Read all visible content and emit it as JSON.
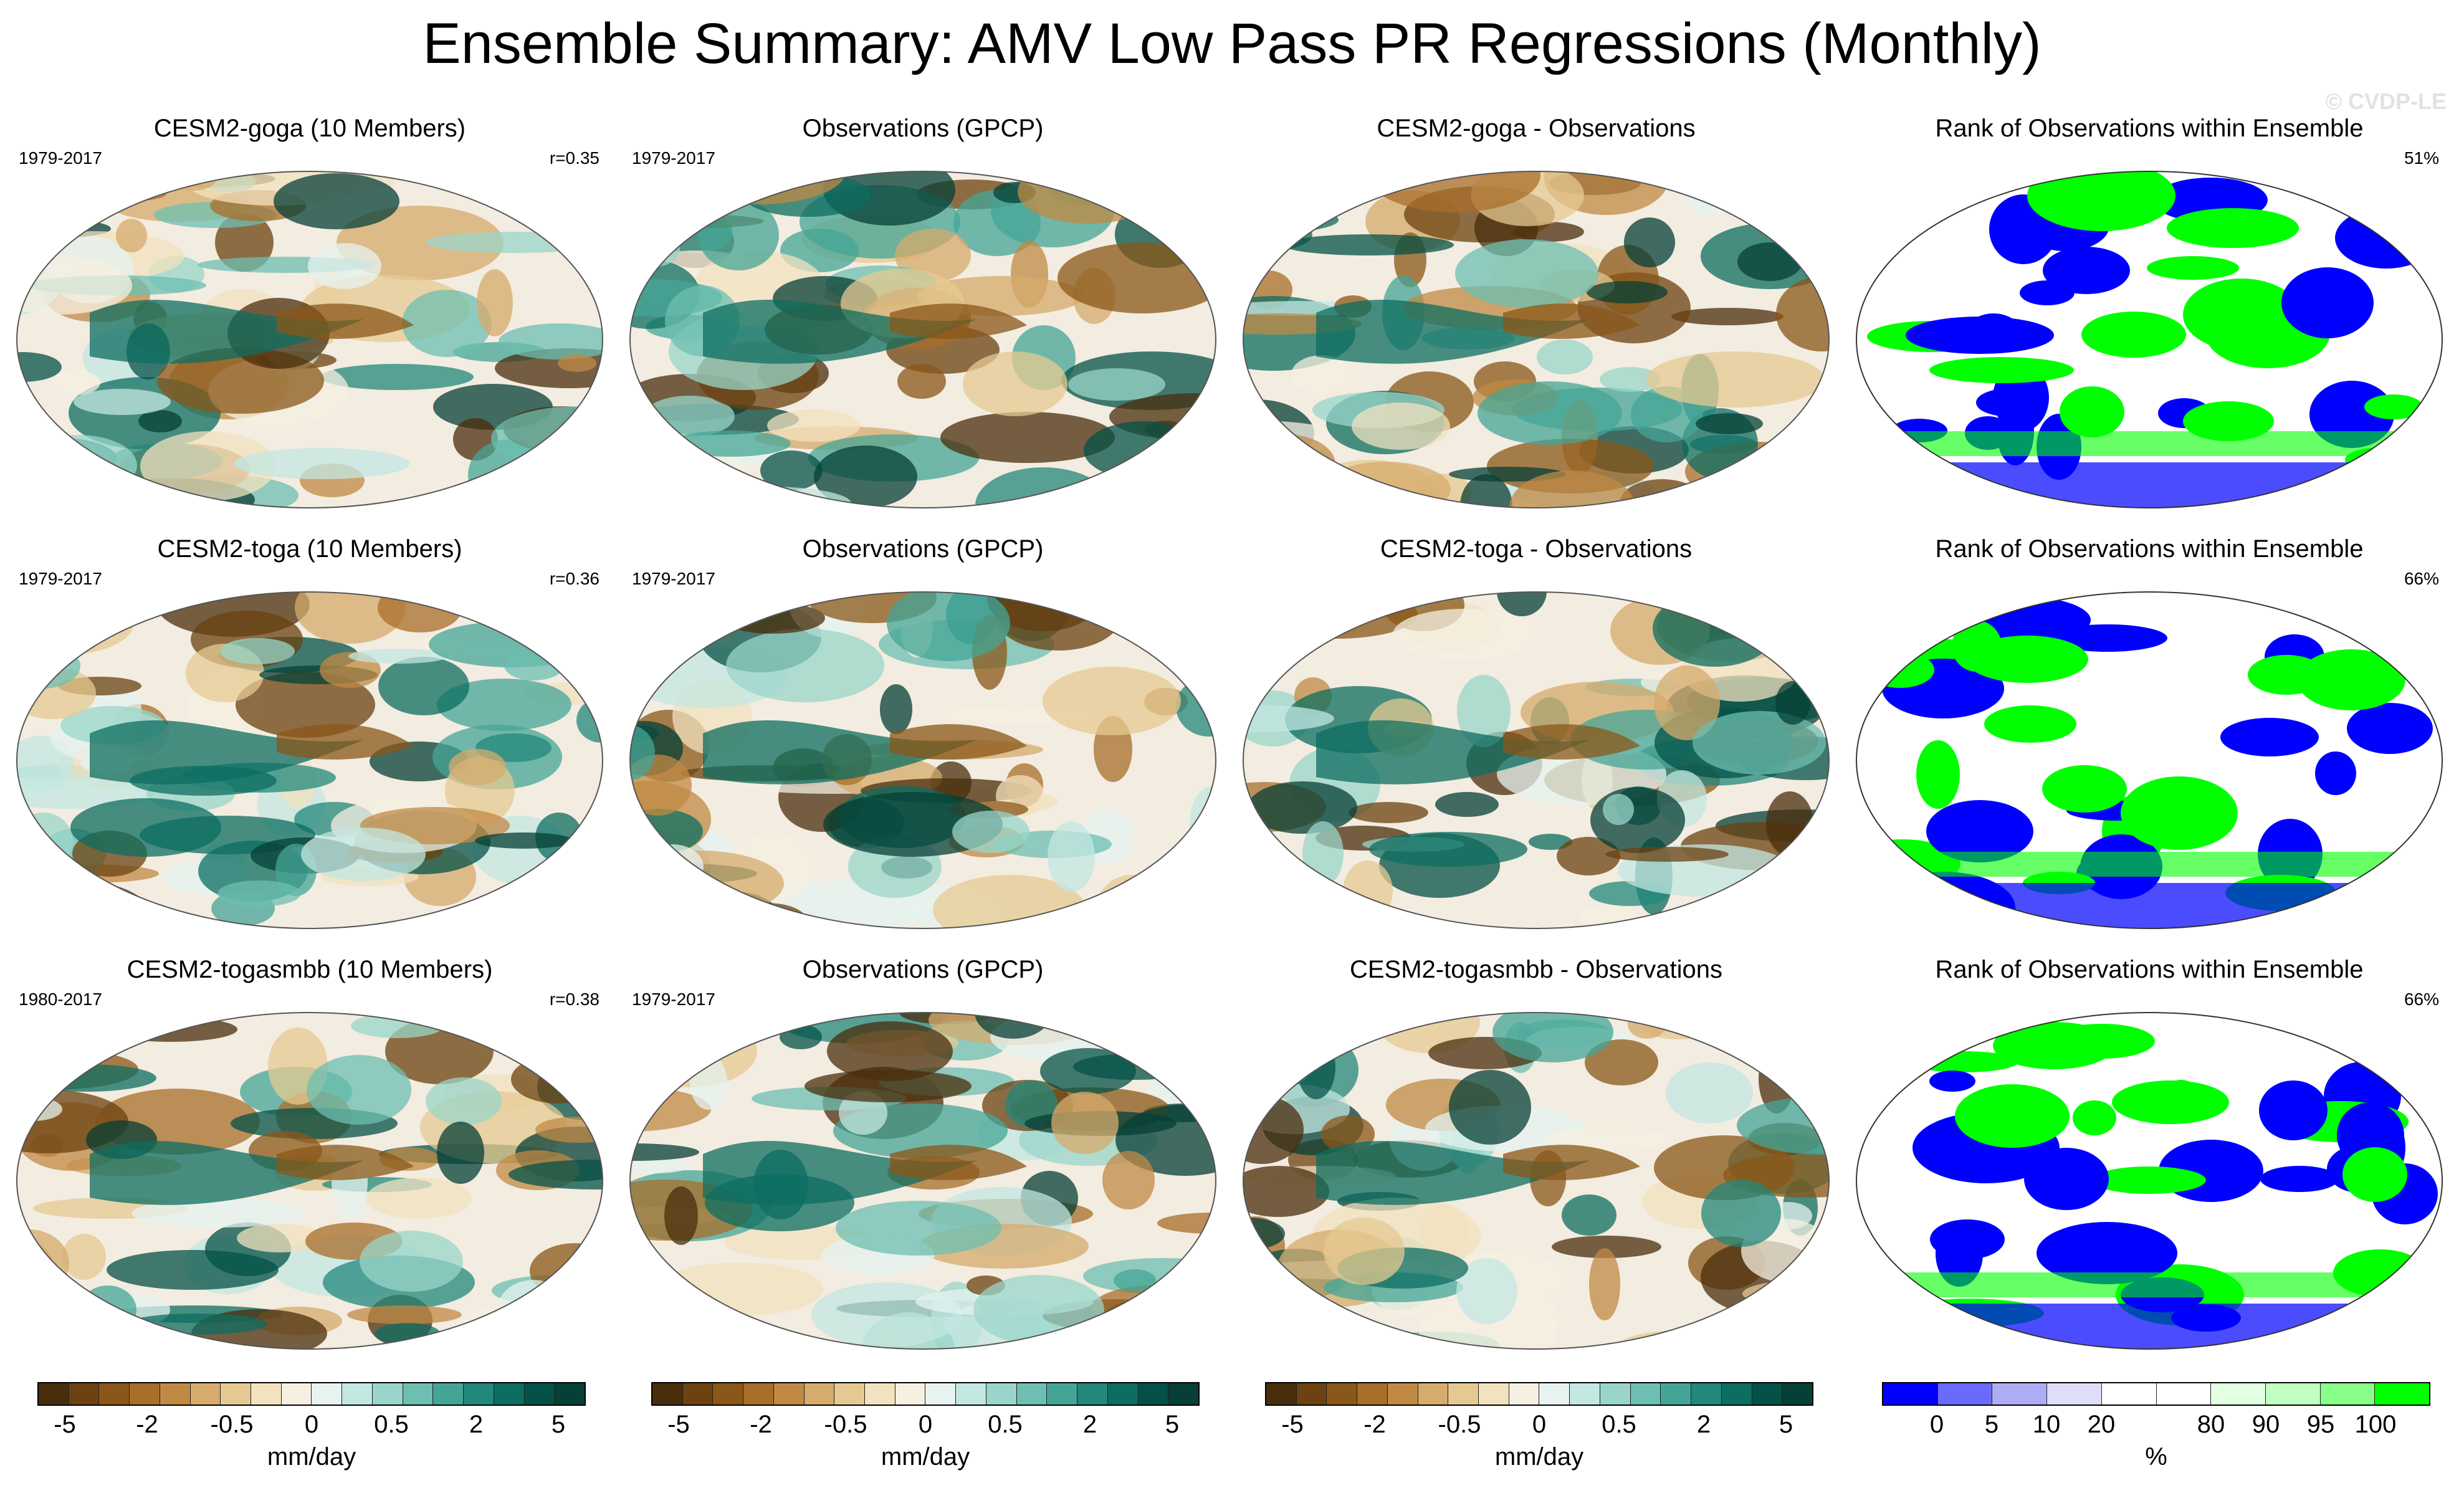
{
  "title": "Ensemble Summary: AMV Low Pass PR Regressions (Monthly)",
  "watermark": "© CVDP-LE",
  "rows": [
    {
      "ensemble": {
        "title": "CESM2-goga (10 Members)",
        "years": "1979-2017",
        "r": "r=0.35"
      },
      "obs": {
        "title": "Observations (GPCP)",
        "years": "1979-2017"
      },
      "diff": {
        "title": "CESM2-goga - Observations"
      },
      "rank": {
        "title": "Rank of Observations within Ensemble",
        "pct": "51%"
      }
    },
    {
      "ensemble": {
        "title": "CESM2-toga (10 Members)",
        "years": "1979-2017",
        "r": "r=0.36"
      },
      "obs": {
        "title": "Observations (GPCP)",
        "years": "1979-2017"
      },
      "diff": {
        "title": "CESM2-toga - Observations"
      },
      "rank": {
        "title": "Rank of Observations within Ensemble",
        "pct": "66%"
      }
    },
    {
      "ensemble": {
        "title": "CESM2-togasmbb (10 Members)",
        "years": "1980-2017",
        "r": "r=0.38"
      },
      "obs": {
        "title": "Observations (GPCP)",
        "years": "1979-2017"
      },
      "diff": {
        "title": "CESM2-togasmbb - Observations"
      },
      "rank": {
        "title": "Rank of Observations within Ensemble",
        "pct": "66%"
      }
    }
  ],
  "colorbar_brbg": {
    "colors": [
      "#4a2e0c",
      "#6b4210",
      "#8a5718",
      "#a86e2a",
      "#c08a44",
      "#d6ab6c",
      "#e6c992",
      "#f2e2bf",
      "#f6f0e2",
      "#e6f3f0",
      "#c3e7e1",
      "#99d5ca",
      "#6cbfb1",
      "#44a597",
      "#21887b",
      "#0c6d60",
      "#045247",
      "#063f36"
    ],
    "ticks": [
      "-5",
      "-2",
      "-0.5",
      "0",
      "0.5",
      "2",
      "5"
    ],
    "unit": "mm/day"
  },
  "colorbar_rank": {
    "colors": [
      "#0000ff",
      "#6a6aff",
      "#adadf5",
      "#dedef8",
      "#ffffff",
      "#ffffff",
      "#e2ffe2",
      "#c2ffc2",
      "#88ff88",
      "#00ff00"
    ],
    "ticks": [
      "0",
      "5",
      "10",
      "20",
      "80",
      "90",
      "95",
      "100"
    ],
    "unit": "%"
  }
}
